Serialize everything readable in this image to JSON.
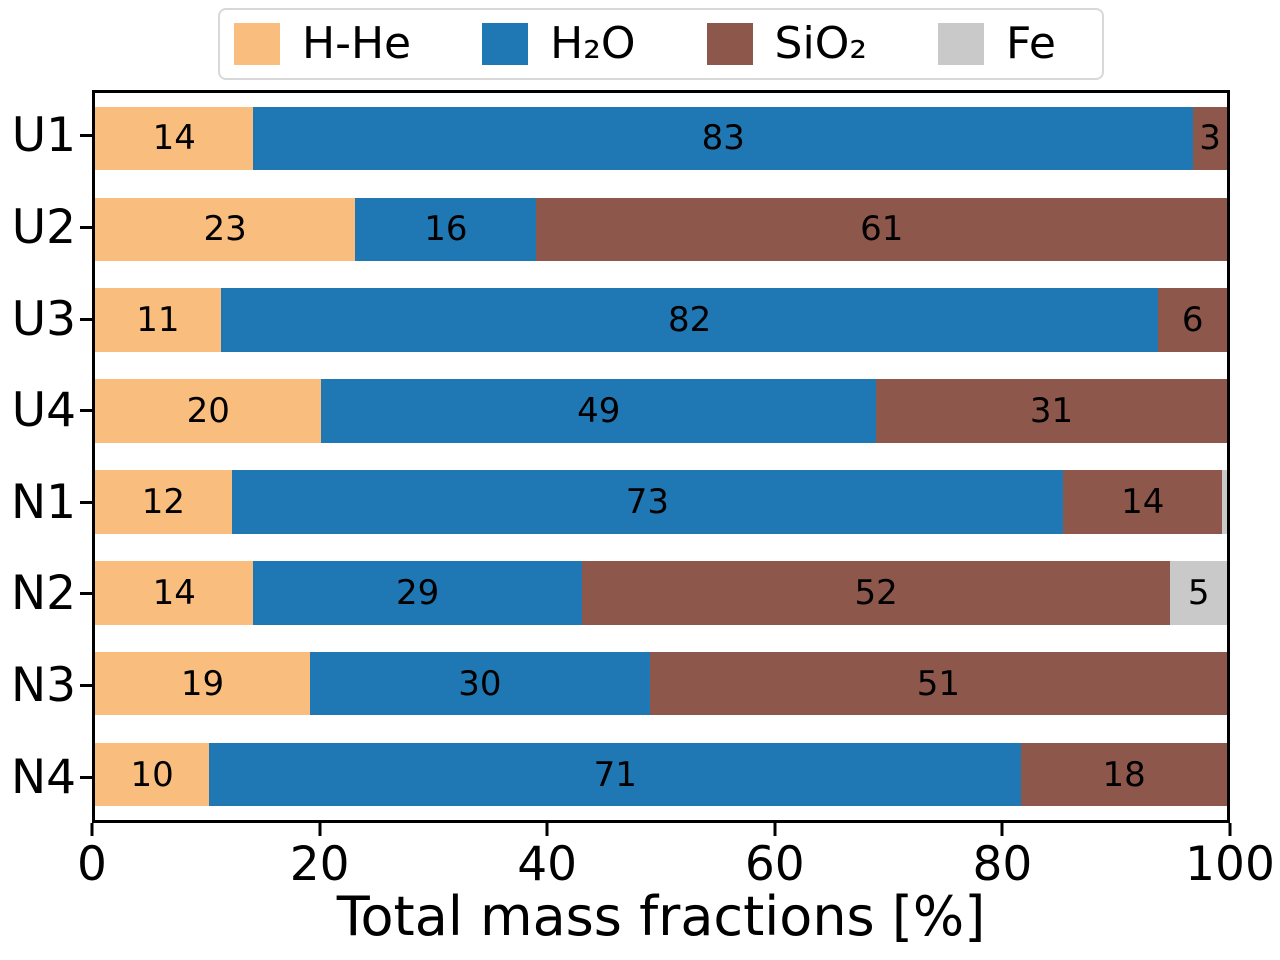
{
  "chart_data": {
    "type": "bar",
    "orientation": "horizontal",
    "stacked": true,
    "title": "",
    "xlabel": "Total mass fractions [%]",
    "ylabel": "",
    "xlim": [
      0,
      100
    ],
    "x_ticks": [
      0,
      20,
      40,
      60,
      80,
      100
    ],
    "grid": false,
    "legend_position": "top-outside",
    "categories": [
      "U1",
      "U2",
      "U3",
      "U4",
      "N1",
      "N2",
      "N3",
      "N4"
    ],
    "series": [
      {
        "name": "H-He",
        "color": "#f9bd7d",
        "values": [
          14,
          23,
          11,
          20,
          12,
          14,
          19,
          10
        ]
      },
      {
        "name": "H₂O",
        "color": "#1f77b4",
        "values": [
          83,
          16,
          82,
          49,
          73,
          29,
          30,
          71
        ]
      },
      {
        "name": "SiO₂",
        "color": "#8d574c",
        "values": [
          3,
          61,
          6,
          31,
          14,
          52,
          51,
          18
        ]
      },
      {
        "name": "Fe",
        "color": "#c9c9c9",
        "values": [
          0,
          0,
          0,
          0,
          0.4,
          5,
          0,
          0
        ]
      }
    ],
    "bar_labels": {
      "U1": [
        "14",
        "83",
        "3",
        ""
      ],
      "U2": [
        "23",
        "16",
        "61",
        ""
      ],
      "U3": [
        "11",
        "82",
        "6",
        ""
      ],
      "U4": [
        "20",
        "49",
        "31",
        ""
      ],
      "N1": [
        "12",
        "73",
        "14",
        ""
      ],
      "N2": [
        "14",
        "29",
        "52",
        "5"
      ],
      "N3": [
        "19",
        "30",
        "51",
        ""
      ],
      "N4": [
        "10",
        "71",
        "18",
        ""
      ]
    },
    "bar_label_color": "#000000",
    "axis_color": "#000000",
    "background_color": "#ffffff"
  },
  "legend": {
    "items": [
      {
        "label": "H-He",
        "color": "#f9bd7d"
      },
      {
        "label": "H₂O",
        "color": "#1f77b4"
      },
      {
        "label": "SiO₂",
        "color": "#8d574c"
      },
      {
        "label": "Fe",
        "color": "#c9c9c9"
      }
    ]
  }
}
